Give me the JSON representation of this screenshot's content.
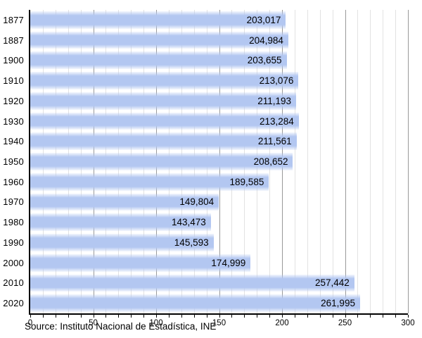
{
  "chart_data": {
    "type": "bar",
    "orientation": "horizontal",
    "title": "",
    "xlabel": "",
    "ylabel": "",
    "categories": [
      "1877",
      "1887",
      "1900",
      "1910",
      "1920",
      "1930",
      "1940",
      "1950",
      "1960",
      "1970",
      "1980",
      "1990",
      "2000",
      "2010",
      "2020"
    ],
    "values": [
      203017,
      204984,
      203655,
      213076,
      211193,
      213284,
      211561,
      208652,
      189585,
      149804,
      143473,
      145593,
      174999,
      257442,
      261995
    ],
    "value_labels": [
      "203,017",
      "204,984",
      "203,655",
      "213,076",
      "211,193",
      "213,284",
      "211,561",
      "208,652",
      "189,585",
      "149,804",
      "143,473",
      "145,593",
      "174,999",
      "257,442",
      "261,995"
    ],
    "xlim": [
      0,
      300
    ],
    "x_major_ticks": [
      0,
      50,
      100,
      150,
      200,
      250,
      300
    ],
    "x_tick_labels": [
      "0",
      "50",
      "100",
      "150",
      "200",
      "250",
      "300"
    ],
    "x_minor_step": 10,
    "axis_unit_divisor": 1000,
    "grid": "vertical",
    "legend": "none",
    "source": "Source: Instituto Nacional de Estadística, INE",
    "colors": {
      "bar_fill": "#b3c7f1",
      "grid_minor": "#e2e2e2",
      "grid_major": "#999999",
      "axis": "#000000",
      "text": "#000000",
      "background": "#ffffff"
    }
  }
}
